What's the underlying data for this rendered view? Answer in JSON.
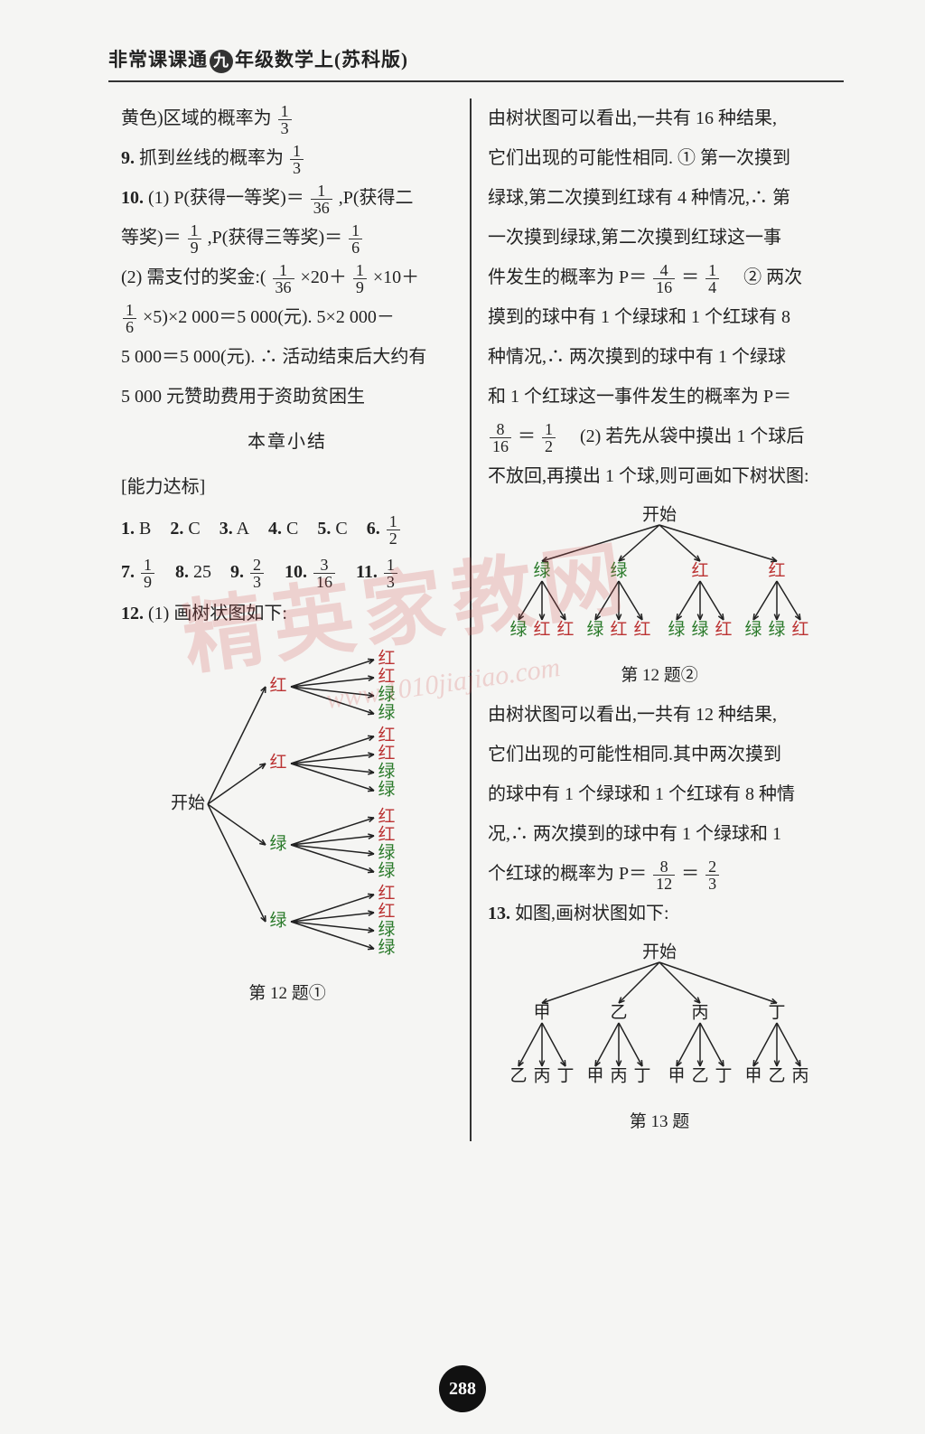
{
  "header": {
    "prefix": "非常课课通",
    "circle": "九",
    "suffix": "年级数学上(苏科版)"
  },
  "left": {
    "p1_pre": "黄色)区域的概率为",
    "p1_frac": {
      "n": "1",
      "d": "3"
    },
    "p9_label": "9.",
    "p9_text": "抓到丝线的概率为",
    "p9_frac": {
      "n": "1",
      "d": "3"
    },
    "p10_label": "10.",
    "p10_a": "(1) P(获得一等奖)＝",
    "p10_frac1": {
      "n": "1",
      "d": "36"
    },
    "p10_b": ",P(获得二",
    "p10_c": "等奖)＝",
    "p10_frac2": {
      "n": "1",
      "d": "9"
    },
    "p10_d": ",P(获得三等奖)＝",
    "p10_frac3": {
      "n": "1",
      "d": "6"
    },
    "p10_e": "(2) 需支付的奖金:(",
    "p10_f1": {
      "n": "1",
      "d": "36"
    },
    "p10_g": "×20＋",
    "p10_f2": {
      "n": "1",
      "d": "9"
    },
    "p10_h": "×10＋",
    "p10_f3": {
      "n": "1",
      "d": "6"
    },
    "p10_i": "×5)×2 000＝5 000(元). 5×2 000－",
    "p10_j": "5 000＝5 000(元). ∴ 活动结束后大约有",
    "p10_k": "5 000 元赞助费用于资助贫困生",
    "summary": "本章小结",
    "ability": "[能力达标]",
    "answers1": [
      {
        "n": "1.",
        "v": "B"
      },
      {
        "n": "2.",
        "v": "C"
      },
      {
        "n": "3.",
        "v": "A"
      },
      {
        "n": "4.",
        "v": "C"
      },
      {
        "n": "5.",
        "v": "C"
      }
    ],
    "a6n": "6.",
    "a6f": {
      "n": "1",
      "d": "2"
    },
    "answers2": [
      {
        "n": "7.",
        "f": {
          "n": "1",
          "d": "9"
        }
      },
      {
        "n": "8.",
        "v": "25"
      },
      {
        "n": "9.",
        "f": {
          "n": "2",
          "d": "3"
        }
      },
      {
        "n": "10.",
        "f": {
          "n": "3",
          "d": "16"
        }
      },
      {
        "n": "11.",
        "f": {
          "n": "1",
          "d": "3"
        }
      }
    ],
    "p12_label": "12.",
    "p12_text": "(1) 画树状图如下:",
    "tree12a": {
      "root": "开始",
      "level1": [
        "红",
        "红",
        "绿",
        "绿"
      ],
      "level2": [
        "红",
        "红",
        "绿",
        "绿"
      ],
      "colors": {
        "红": "#b33",
        "绿": "#2a7a2a",
        "开始": "#222"
      }
    },
    "fig12a": "第 12 题①"
  },
  "right": {
    "r1": "由树状图可以看出,一共有 16 种结果,",
    "r2": "它们出现的可能性相同. ① 第一次摸到",
    "r3": "绿球,第二次摸到红球有 4 种情况,∴ 第",
    "r4": "一次摸到绿球,第二次摸到红球这一事",
    "r5a": "件发生的概率为 P＝",
    "r5f1": {
      "n": "4",
      "d": "16"
    },
    "r5b": "＝",
    "r5f2": {
      "n": "1",
      "d": "4"
    },
    "r5c": "　② 两次",
    "r6": "摸到的球中有 1 个绿球和 1 个红球有 8",
    "r7": "种情况,∴ 两次摸到的球中有 1 个绿球",
    "r8": "和 1 个红球这一事件发生的概率为 P＝",
    "r9f1": {
      "n": "8",
      "d": "16"
    },
    "r9a": "＝",
    "r9f2": {
      "n": "1",
      "d": "2"
    },
    "r9b": "　(2) 若先从袋中摸出 1 个球后",
    "r10": "不放回,再摸出 1 个球,则可画如下树状图:",
    "tree12b": {
      "root": "开始",
      "level1": [
        "绿",
        "绿",
        "红",
        "红"
      ],
      "level2": [
        [
          "绿",
          "红",
          "红"
        ],
        [
          "绿",
          "红",
          "红"
        ],
        [
          "绿",
          "绿",
          "红"
        ],
        [
          "绿",
          "绿",
          "红"
        ]
      ]
    },
    "fig12b": "第 12 题②",
    "r11": "由树状图可以看出,一共有 12 种结果,",
    "r12": "它们出现的可能性相同.其中两次摸到",
    "r13": "的球中有 1 个绿球和 1 个红球有 8 种情",
    "r14": "况,∴ 两次摸到的球中有 1 个绿球和 1",
    "r15a": "个红球的概率为 P＝",
    "r15f1": {
      "n": "8",
      "d": "12"
    },
    "r15b": "＝",
    "r15f2": {
      "n": "2",
      "d": "3"
    },
    "p13_label": "13.",
    "p13_text": "如图,画树状图如下:",
    "tree13": {
      "root": "开始",
      "level1": [
        "甲",
        "乙",
        "丙",
        "丁"
      ],
      "level2": [
        [
          "乙",
          "丙",
          "丁"
        ],
        [
          "甲",
          "丙",
          "丁"
        ],
        [
          "甲",
          "乙",
          "丁"
        ],
        [
          "甲",
          "乙",
          "丙"
        ]
      ]
    },
    "fig13": "第 13 题"
  },
  "pagenum": "288",
  "watermark": "精英家教网",
  "watermark_url": "www.1010jiajiao.com"
}
